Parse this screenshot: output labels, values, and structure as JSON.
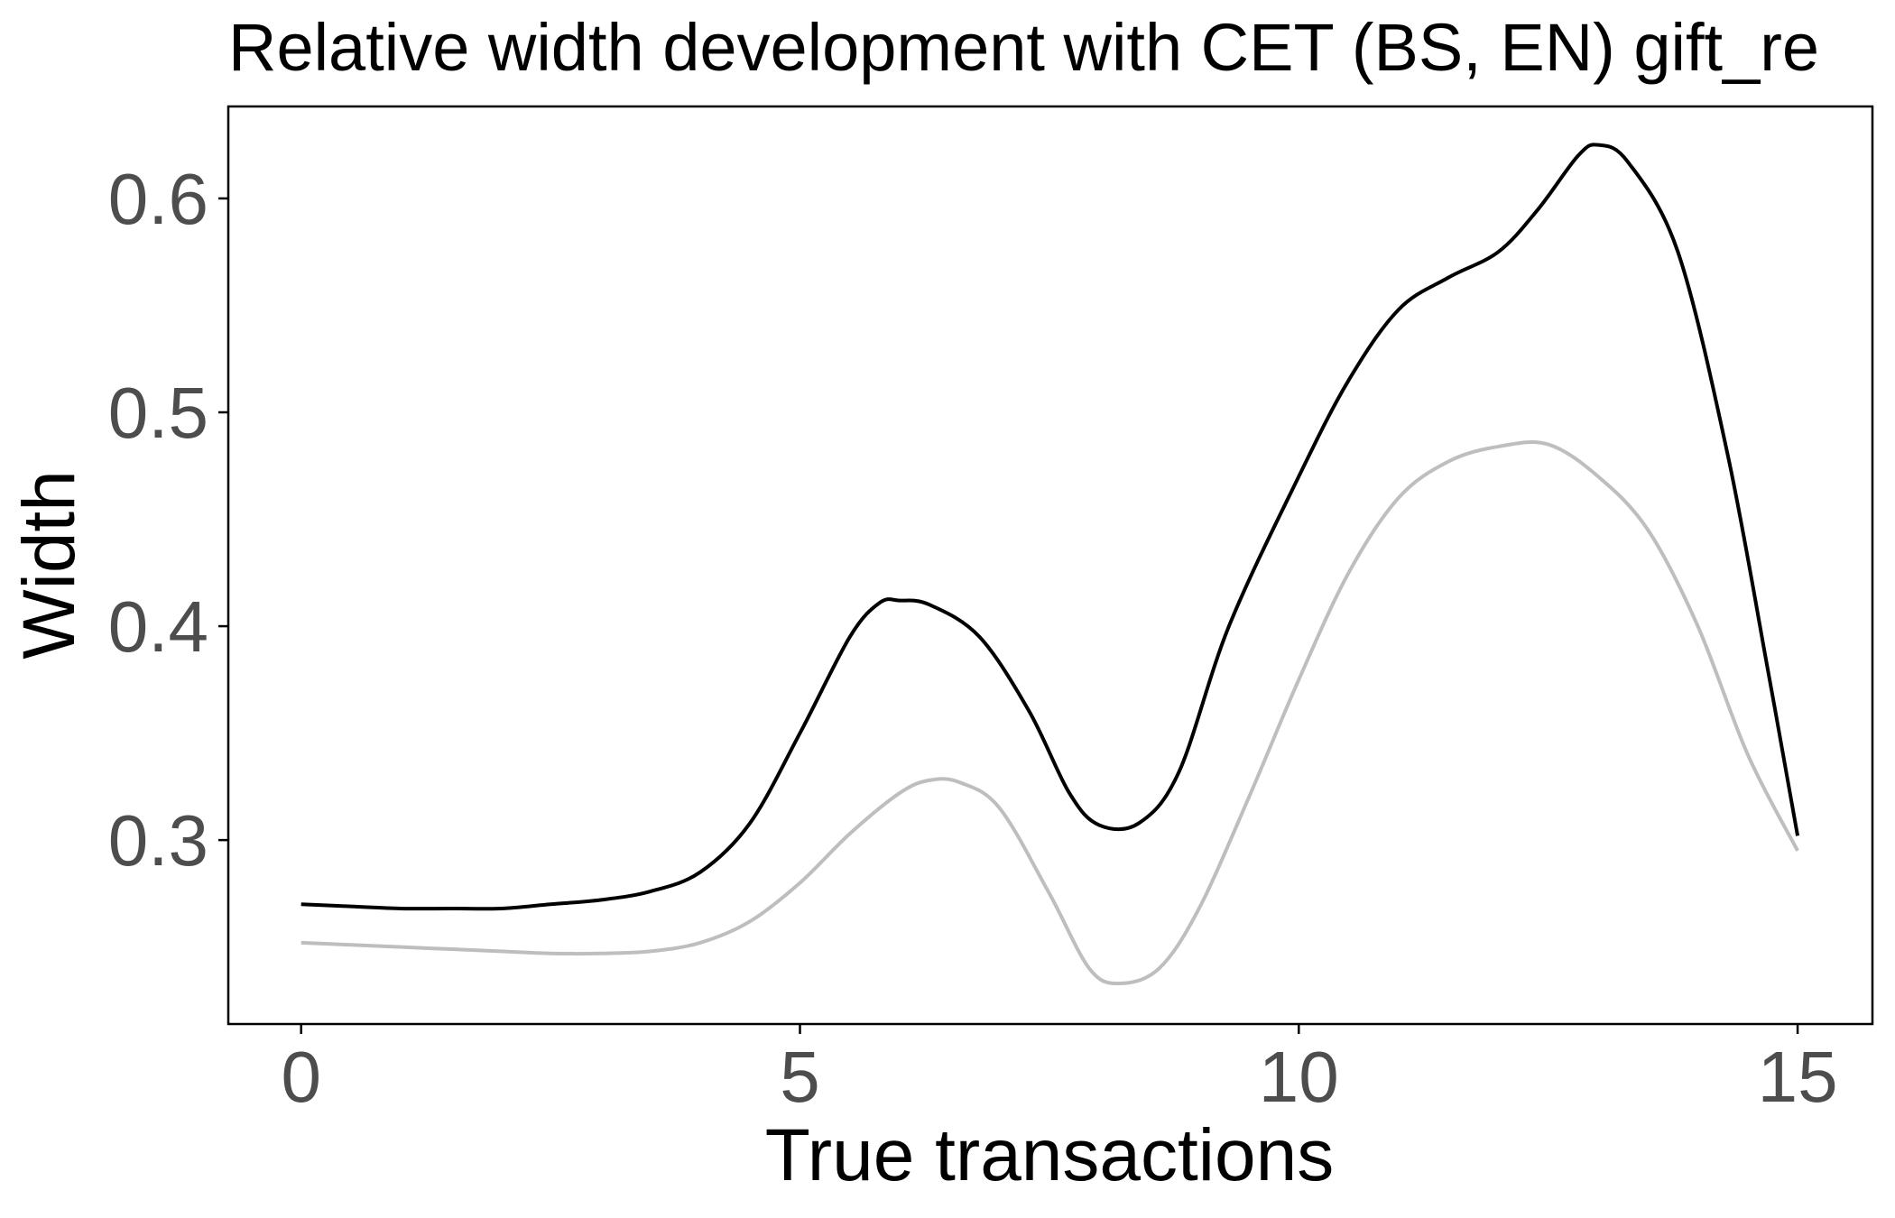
{
  "chart_data": {
    "type": "line",
    "title": "Relative width development with CET (BS, EN) gift_re",
    "xlabel": "True transactions",
    "ylabel": "Width",
    "xlim": [
      -0.73,
      15.75
    ],
    "ylim": [
      0.214,
      0.643
    ],
    "x_ticks": [
      0,
      5,
      10,
      15
    ],
    "x_tick_labels": [
      "0",
      "5",
      "10",
      "15"
    ],
    "y_ticks": [
      0.3,
      0.4,
      0.5,
      0.6
    ],
    "y_tick_labels": [
      "0.3",
      "0.4",
      "0.5",
      "0.6"
    ],
    "grid": false,
    "legend": "none",
    "colors": {
      "series_dark": "#000000",
      "series_light": "#bebebe",
      "tick_label": "#4d4d4d",
      "axis": "#000000",
      "background": "#ffffff"
    },
    "series": [
      {
        "color": "#000000",
        "points": [
          [
            0,
            0.27
          ],
          [
            0.5,
            0.269
          ],
          [
            1,
            0.268
          ],
          [
            1.5,
            0.268
          ],
          [
            2,
            0.268
          ],
          [
            2.5,
            0.27
          ],
          [
            3,
            0.272
          ],
          [
            3.5,
            0.276
          ],
          [
            4,
            0.285
          ],
          [
            4.5,
            0.308
          ],
          [
            5,
            0.35
          ],
          [
            5.5,
            0.395
          ],
          [
            5.8,
            0.411
          ],
          [
            6,
            0.412
          ],
          [
            6.3,
            0.41
          ],
          [
            6.8,
            0.395
          ],
          [
            7.3,
            0.36
          ],
          [
            7.7,
            0.322
          ],
          [
            8,
            0.307
          ],
          [
            8.4,
            0.308
          ],
          [
            8.8,
            0.332
          ],
          [
            9.3,
            0.4
          ],
          [
            10,
            0.47
          ],
          [
            10.5,
            0.515
          ],
          [
            11,
            0.548
          ],
          [
            11.5,
            0.563
          ],
          [
            12,
            0.575
          ],
          [
            12.4,
            0.595
          ],
          [
            12.8,
            0.62
          ],
          [
            13,
            0.625
          ],
          [
            13.3,
            0.617
          ],
          [
            13.8,
            0.575
          ],
          [
            14.3,
            0.48
          ],
          [
            14.7,
            0.38
          ],
          [
            15,
            0.302
          ]
        ]
      },
      {
        "color": "#bebebe",
        "points": [
          [
            0,
            0.252
          ],
          [
            0.5,
            0.251
          ],
          [
            1,
            0.25
          ],
          [
            1.5,
            0.249
          ],
          [
            2,
            0.248
          ],
          [
            2.5,
            0.247
          ],
          [
            3,
            0.247
          ],
          [
            3.5,
            0.248
          ],
          [
            4,
            0.252
          ],
          [
            4.5,
            0.262
          ],
          [
            5,
            0.28
          ],
          [
            5.5,
            0.303
          ],
          [
            6,
            0.322
          ],
          [
            6.3,
            0.328
          ],
          [
            6.6,
            0.327
          ],
          [
            7,
            0.315
          ],
          [
            7.5,
            0.275
          ],
          [
            7.9,
            0.24
          ],
          [
            8.2,
            0.233
          ],
          [
            8.6,
            0.24
          ],
          [
            9,
            0.268
          ],
          [
            9.5,
            0.32
          ],
          [
            10,
            0.375
          ],
          [
            10.5,
            0.425
          ],
          [
            11,
            0.46
          ],
          [
            11.5,
            0.477
          ],
          [
            12,
            0.484
          ],
          [
            12.5,
            0.485
          ],
          [
            13,
            0.47
          ],
          [
            13.5,
            0.445
          ],
          [
            14,
            0.4
          ],
          [
            14.5,
            0.34
          ],
          [
            15,
            0.295
          ]
        ]
      }
    ]
  }
}
